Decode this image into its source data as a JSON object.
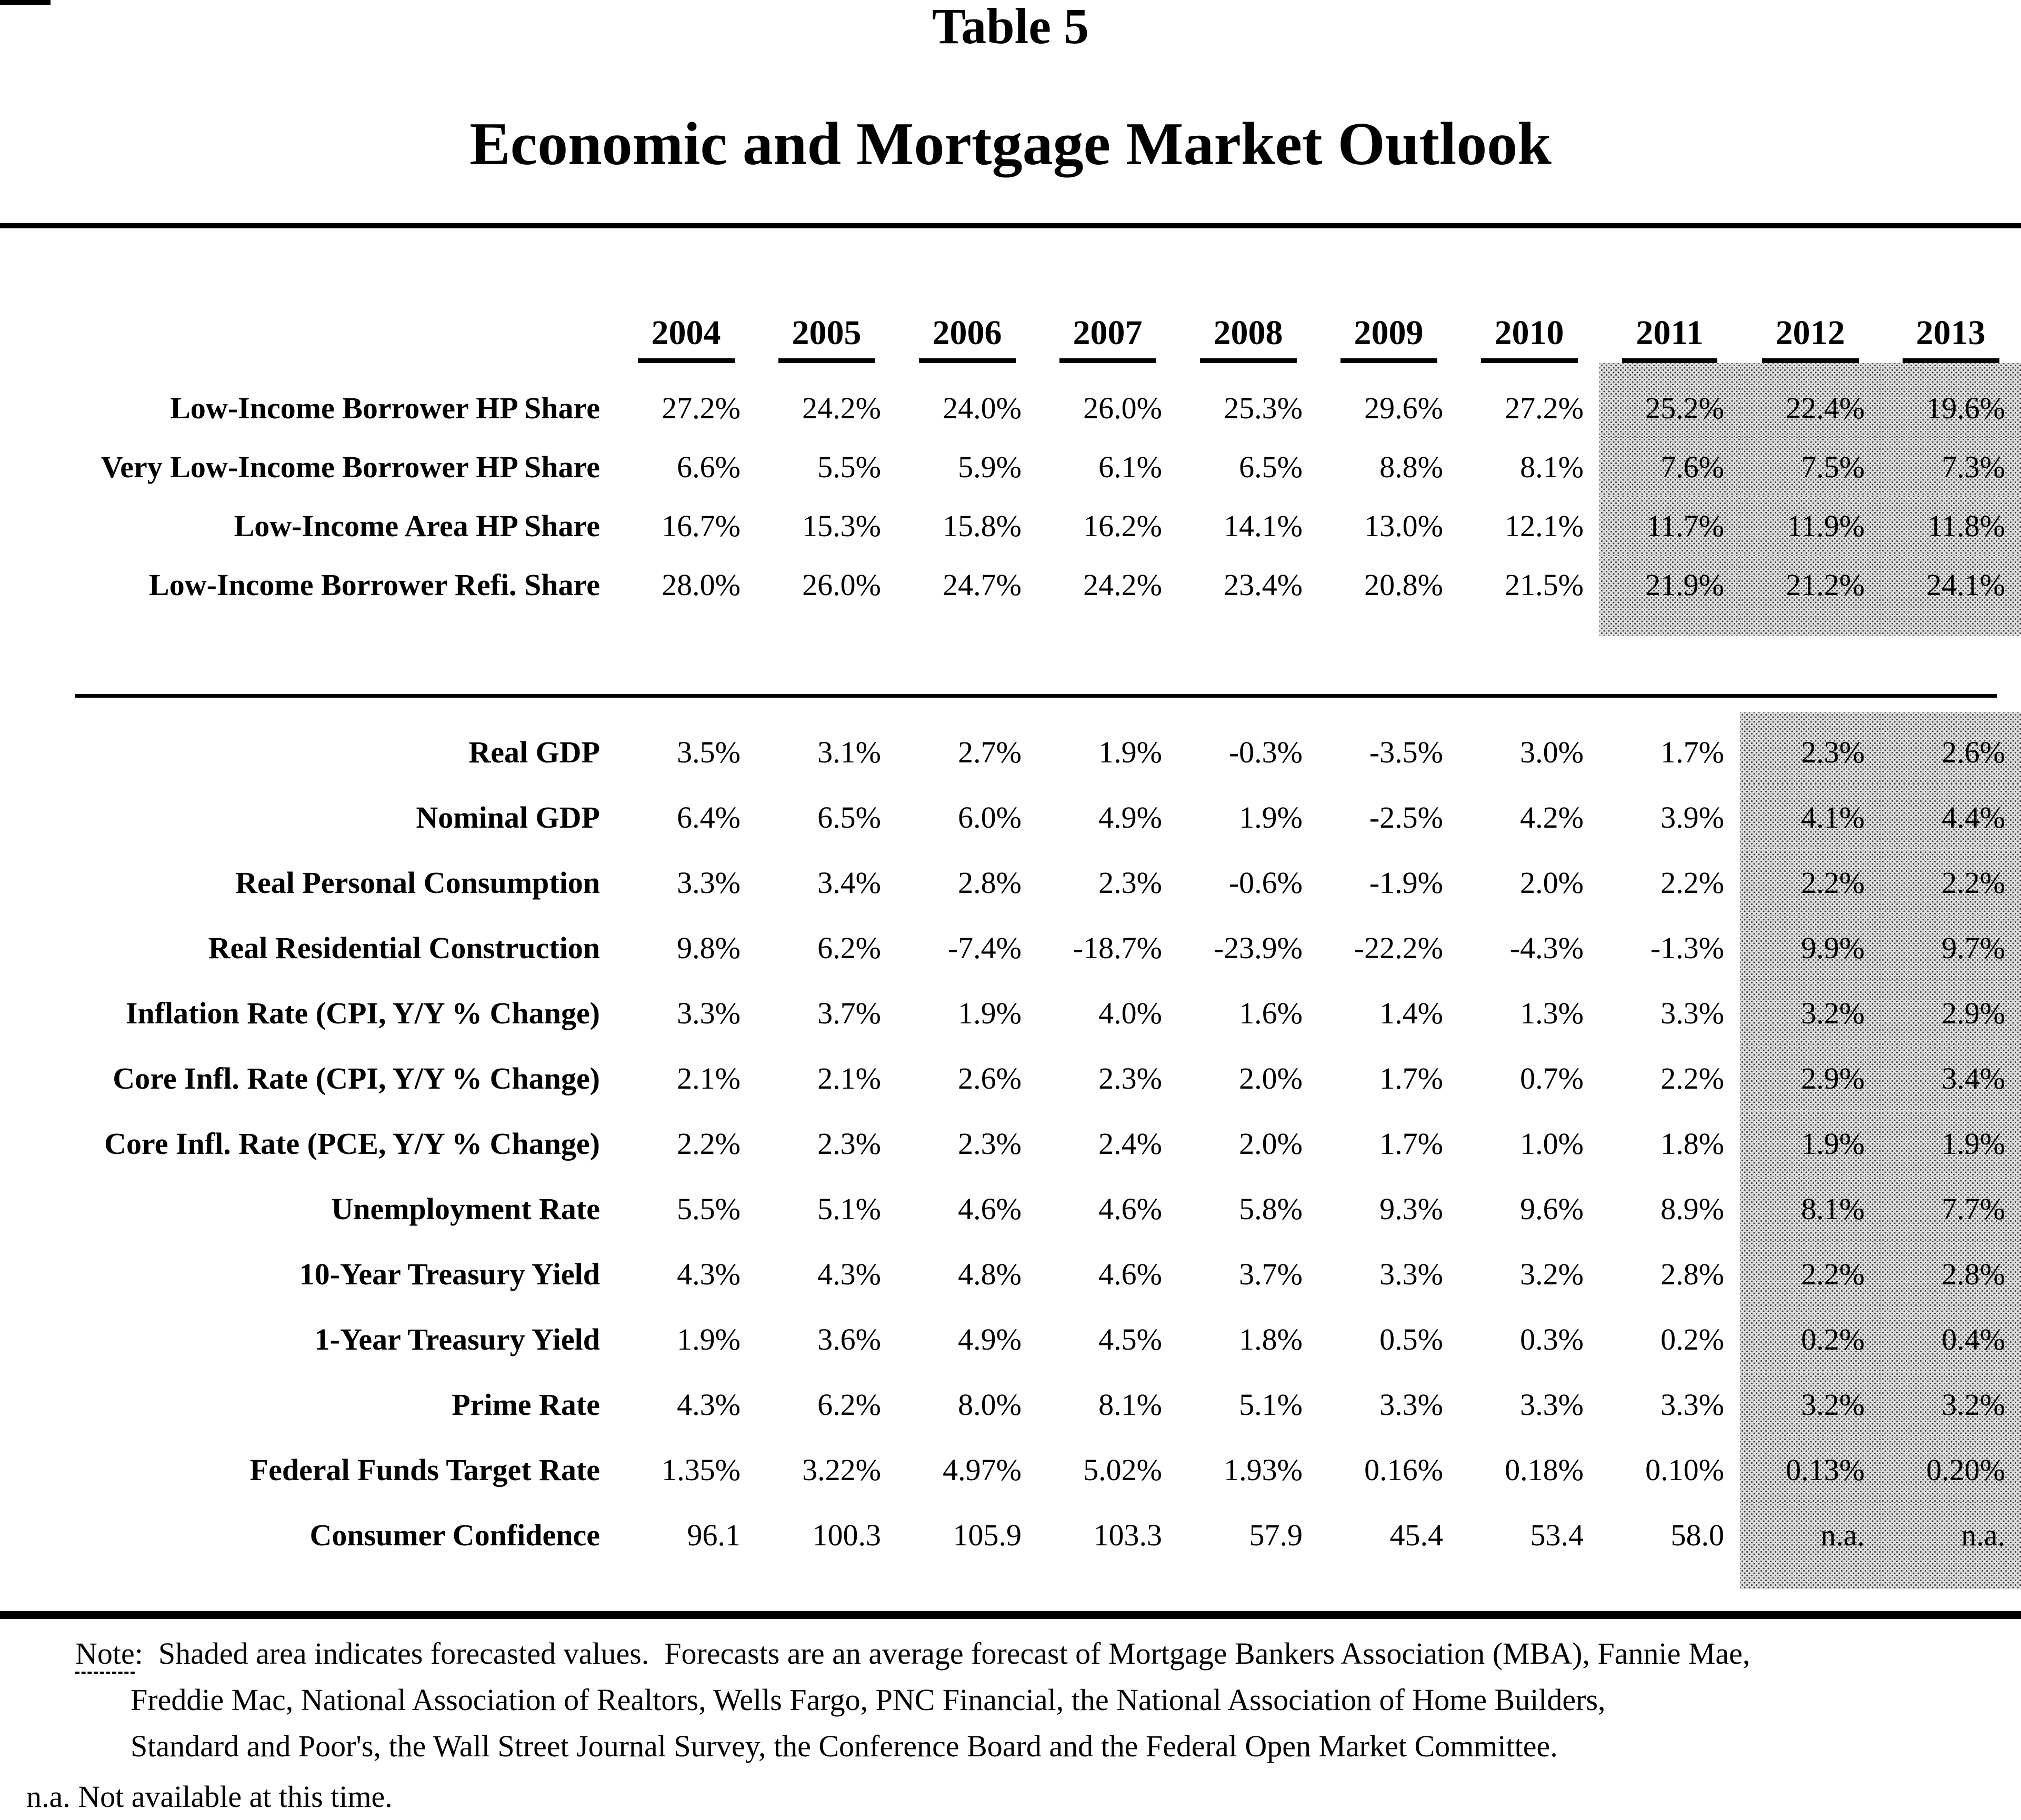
{
  "page": {
    "table_number": "Table 5",
    "title": "Economic and Mortgage Market Outlook"
  },
  "years": [
    "2004",
    "2005",
    "2006",
    "2007",
    "2008",
    "2009",
    "2010",
    "2011",
    "2012",
    "2013"
  ],
  "sections": [
    {
      "name": "housing-share",
      "forecast_start_index": 7,
      "rows": [
        {
          "label": "Low-Income Borrower HP Share",
          "values": [
            "27.2%",
            "24.2%",
            "24.0%",
            "26.0%",
            "25.3%",
            "29.6%",
            "27.2%",
            "25.2%",
            "22.4%",
            "19.6%"
          ]
        },
        {
          "label": "Very Low-Income Borrower HP Share",
          "values": [
            "6.6%",
            "5.5%",
            "5.9%",
            "6.1%",
            "6.5%",
            "8.8%",
            "8.1%",
            "7.6%",
            "7.5%",
            "7.3%"
          ]
        },
        {
          "label": "Low-Income Area HP Share",
          "values": [
            "16.7%",
            "15.3%",
            "15.8%",
            "16.2%",
            "14.1%",
            "13.0%",
            "12.1%",
            "11.7%",
            "11.9%",
            "11.8%"
          ]
        },
        {
          "label": "Low-Income Borrower Refi. Share",
          "values": [
            "28.0%",
            "26.0%",
            "24.7%",
            "24.2%",
            "23.4%",
            "20.8%",
            "21.5%",
            "21.9%",
            "21.2%",
            "24.1%"
          ]
        }
      ]
    },
    {
      "name": "economic-outlook",
      "forecast_start_index": 8,
      "rows": [
        {
          "label": "Real GDP",
          "values": [
            "3.5%",
            "3.1%",
            "2.7%",
            "1.9%",
            "-0.3%",
            "-3.5%",
            "3.0%",
            "1.7%",
            "2.3%",
            "2.6%"
          ]
        },
        {
          "label": "Nominal GDP",
          "values": [
            "6.4%",
            "6.5%",
            "6.0%",
            "4.9%",
            "1.9%",
            "-2.5%",
            "4.2%",
            "3.9%",
            "4.1%",
            "4.4%"
          ]
        },
        {
          "label": "Real Personal Consumption",
          "values": [
            "3.3%",
            "3.4%",
            "2.8%",
            "2.3%",
            "-0.6%",
            "-1.9%",
            "2.0%",
            "2.2%",
            "2.2%",
            "2.2%"
          ]
        },
        {
          "label": "Real Residential Construction",
          "values": [
            "9.8%",
            "6.2%",
            "-7.4%",
            "-18.7%",
            "-23.9%",
            "-22.2%",
            "-4.3%",
            "-1.3%",
            "9.9%",
            "9.7%"
          ]
        },
        {
          "label": "Inflation Rate (CPI, Y/Y % Change)",
          "values": [
            "3.3%",
            "3.7%",
            "1.9%",
            "4.0%",
            "1.6%",
            "1.4%",
            "1.3%",
            "3.3%",
            "3.2%",
            "2.9%"
          ]
        },
        {
          "label": "Core Infl. Rate (CPI, Y/Y % Change)",
          "values": [
            "2.1%",
            "2.1%",
            "2.6%",
            "2.3%",
            "2.0%",
            "1.7%",
            "0.7%",
            "2.2%",
            "2.9%",
            "3.4%"
          ]
        },
        {
          "label": "Core Infl. Rate (PCE, Y/Y % Change)",
          "values": [
            "2.2%",
            "2.3%",
            "2.3%",
            "2.4%",
            "2.0%",
            "1.7%",
            "1.0%",
            "1.8%",
            "1.9%",
            "1.9%"
          ]
        },
        {
          "label": "Unemployment Rate",
          "values": [
            "5.5%",
            "5.1%",
            "4.6%",
            "4.6%",
            "5.8%",
            "9.3%",
            "9.6%",
            "8.9%",
            "8.1%",
            "7.7%"
          ]
        },
        {
          "label": "10-Year Treasury Yield",
          "values": [
            "4.3%",
            "4.3%",
            "4.8%",
            "4.6%",
            "3.7%",
            "3.3%",
            "3.2%",
            "2.8%",
            "2.2%",
            "2.8%"
          ]
        },
        {
          "label": "1-Year Treasury Yield",
          "values": [
            "1.9%",
            "3.6%",
            "4.9%",
            "4.5%",
            "1.8%",
            "0.5%",
            "0.3%",
            "0.2%",
            "0.2%",
            "0.4%"
          ]
        },
        {
          "label": "Prime Rate",
          "values": [
            "4.3%",
            "6.2%",
            "8.0%",
            "8.1%",
            "5.1%",
            "3.3%",
            "3.3%",
            "3.3%",
            "3.2%",
            "3.2%"
          ]
        },
        {
          "label": "Federal Funds Target Rate",
          "values": [
            "1.35%",
            "3.22%",
            "4.97%",
            "5.02%",
            "1.93%",
            "0.16%",
            "0.18%",
            "0.10%",
            "0.13%",
            "0.20%"
          ]
        },
        {
          "label": "Consumer Confidence",
          "values": [
            "96.1",
            "100.3",
            "105.9",
            "103.3",
            "57.9",
            "45.4",
            "53.4",
            "58.0",
            "n.a.",
            "n.a."
          ]
        }
      ]
    }
  ],
  "note": {
    "label": "Note",
    "line1_rest": ":  Shaded area indicates forecasted values.  Forecasts are an average forecast of Mortgage Bankers Association (MBA), Fannie Mae,",
    "line2": "Freddie Mac, National Association of Realtors, Wells Fargo, PNC Financial, the National Association of Home Builders,",
    "line3": "Standard and Poor's, the Wall Street Journal Survey, the Conference Board and the Federal Open Market Committee.",
    "na_line": "n.a. Not available at this time."
  },
  "colors": {
    "paper": "#ffffff",
    "ink": "#000000",
    "forecast_shading_base": "#dcdcdc",
    "forecast_shading_dot": "#3f3f3f"
  }
}
